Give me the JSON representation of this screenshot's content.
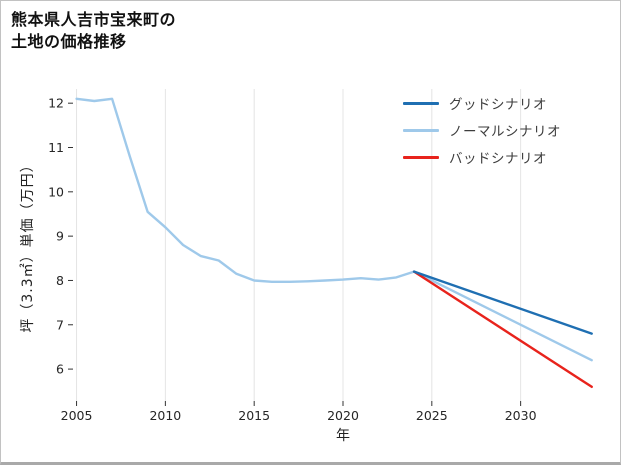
{
  "header": {
    "title_line1": "熊本県人吉市宝来町の",
    "title_line2": "土地の価格推移"
  },
  "chart_data": {
    "type": "line",
    "title": "熊本県人吉市宝来町の土地の価格推移",
    "xlabel": "年",
    "ylabel": "坪（3.3㎡）単価（万円）",
    "xlim": [
      2004.8,
      2035.2
    ],
    "ylim": [
      5.28,
      12.32
    ],
    "xticks": [
      2005,
      2010,
      2015,
      2020,
      2025,
      2030
    ],
    "yticks": [
      6,
      7,
      8,
      9,
      10,
      11,
      12
    ],
    "grid": "vertical-only",
    "legend": {
      "position": "top-right",
      "entries": [
        {
          "label": "グッドシナリオ",
          "color": "#1f6fb2"
        },
        {
          "label": "ノーマルシナリオ",
          "color": "#9fc9ea"
        },
        {
          "label": "バッドシナリオ",
          "color": "#e8231c"
        }
      ]
    },
    "series": [
      {
        "id": "price-history",
        "color": "#9fc9ea",
        "x": [
          2005,
          2006,
          2007,
          2008,
          2009,
          2010,
          2011,
          2012,
          2013,
          2014,
          2015,
          2016,
          2017,
          2018,
          2019,
          2020,
          2021,
          2022,
          2023,
          2024
        ],
        "values": [
          12.1,
          12.05,
          12.1,
          10.8,
          9.55,
          9.2,
          8.8,
          8.55,
          8.45,
          8.15,
          8.0,
          7.97,
          7.97,
          7.98,
          8.0,
          8.02,
          8.05,
          8.02,
          8.07,
          8.2
        ]
      },
      {
        "id": "normal-scenario",
        "label": "ノーマルシナリオ",
        "color": "#9fc9ea",
        "x": [
          2024,
          2034
        ],
        "values": [
          8.2,
          6.2
        ]
      },
      {
        "id": "bad-scenario",
        "label": "バッドシナリオ",
        "color": "#e8231c",
        "x": [
          2024,
          2034
        ],
        "values": [
          8.2,
          5.6
        ]
      },
      {
        "id": "good-scenario",
        "label": "グッドシナリオ",
        "color": "#1f6fb2",
        "x": [
          2024,
          2034
        ],
        "values": [
          8.2,
          6.8
        ]
      }
    ]
  }
}
